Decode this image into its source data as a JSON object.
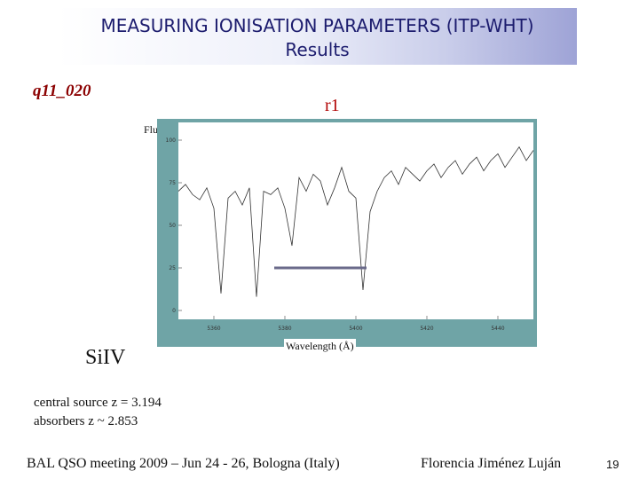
{
  "slide": {
    "title_line1": "MEASURING IONISATION PARAMETERS (ITP-WHT)",
    "title_line2": "Results",
    "qso_name": "q11_020",
    "region_label": "r1",
    "ion_label": "SiIV",
    "central_source": "central source z = 3.194",
    "absorbers": "absorbers z ~ 2.853",
    "footer_meeting": "BAL QSO meeting 2009 – Jun 24 - 26, Bologna (Italy)",
    "footer_author": "Florencia Jiménez Luján",
    "page_number": "19"
  },
  "chart_data": {
    "type": "line",
    "ylabel": "Flux",
    "xlabel": "Wavelength (Å)",
    "xlim": [
      5350,
      5450
    ],
    "ylim": [
      0,
      100
    ],
    "x_ticks": [
      "5360",
      "5380",
      "5400",
      "5420",
      "5440"
    ],
    "y_ticks": [
      "0",
      "25",
      "50",
      "75",
      "100"
    ],
    "series": [
      {
        "x": [
          5350,
          5352,
          5354,
          5356,
          5358,
          5360,
          5362,
          5364,
          5366,
          5368,
          5370,
          5372,
          5374,
          5376,
          5378,
          5380,
          5382,
          5384,
          5386,
          5388,
          5390,
          5392,
          5394,
          5396,
          5398,
          5400,
          5402,
          5404,
          5406,
          5408,
          5410,
          5412,
          5414,
          5416,
          5418,
          5420,
          5422,
          5424,
          5426,
          5428,
          5430,
          5432,
          5434,
          5436,
          5438,
          5440,
          5442,
          5444,
          5446,
          5448,
          5450
        ],
        "y": [
          70,
          74,
          68,
          65,
          72,
          60,
          10,
          66,
          70,
          62,
          72,
          8,
          70,
          68,
          72,
          60,
          38,
          78,
          70,
          80,
          76,
          62,
          72,
          84,
          70,
          66,
          12,
          58,
          70,
          78,
          82,
          74,
          84,
          80,
          76,
          82,
          86,
          78,
          84,
          88,
          80,
          86,
          90,
          82,
          88,
          92,
          84,
          90,
          96,
          88,
          94
        ]
      }
    ],
    "absorption_bar": {
      "x_start": 5377,
      "x_end": 5403,
      "y": 25
    },
    "grid": false
  }
}
